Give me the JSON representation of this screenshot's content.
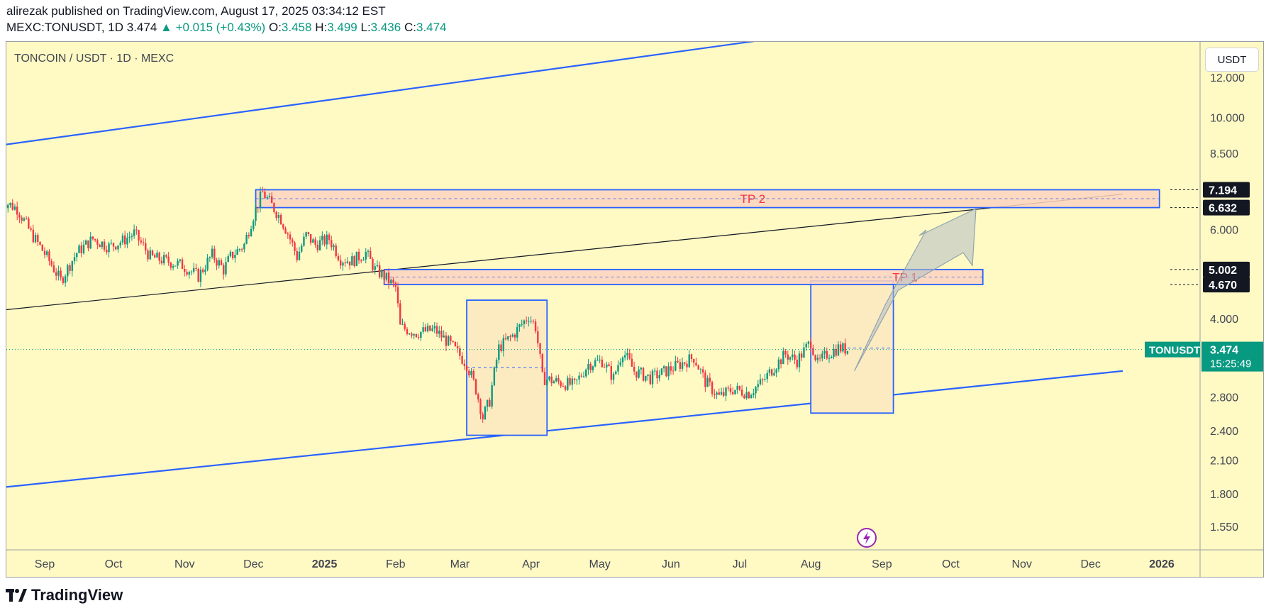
{
  "header": {
    "publisher_line": "alirezak published on TradingView.com, August 17, 2025 03:34:12 EST",
    "symbol": "MEXC:TONUSDT",
    "interval": "1D",
    "last": "3.474",
    "change": "+0.015 (+0.43%)",
    "open_label": "O:",
    "open": "3.458",
    "high_label": "H:",
    "high": "3.499",
    "low_label": "L:",
    "low": "3.436",
    "close_label": "C:",
    "close": "3.474"
  },
  "legend": "TONCOIN / USDT · 1D · MEXC",
  "currency": "USDT",
  "footer": {
    "brand": "TradingView"
  },
  "colors": {
    "background": "#fff9c4",
    "up": "#089981",
    "down": "#f23645",
    "channel": "#2962ff",
    "zone_fill": "#fbd4c0",
    "box_fill": "#fcebc0",
    "tp_text": "#f23645",
    "arrow": "#b0bec5"
  },
  "chart_data": {
    "type": "candlestick",
    "scale": "log",
    "symbol": "TONUSDT",
    "price_label": "3.474",
    "countdown": "15:25:49",
    "y_ticks": [
      "12.000",
      "10.000",
      "8.500",
      "6.000",
      "4.000",
      "2.800",
      "2.400",
      "2.100",
      "1.800",
      "1.550"
    ],
    "x_ticks": [
      "Sep",
      "Oct",
      "Nov",
      "Dec",
      "2025",
      "Feb",
      "Mar",
      "Apr",
      "May",
      "Jun",
      "Jul",
      "Aug",
      "Sep",
      "Oct",
      "Nov",
      "Dec",
      "2026"
    ],
    "key_levels": [
      {
        "label": "7.194",
        "value": 7.194
      },
      {
        "label": "6.632",
        "value": 6.632
      },
      {
        "label": "5.002",
        "value": 5.002
      },
      {
        "label": "4.670",
        "value": 4.67
      }
    ],
    "zones": [
      {
        "name": "TP 2",
        "top": 7.194,
        "bottom": 6.632,
        "start": "2024-12-02",
        "end": "2025-12-31"
      },
      {
        "name": "TP 1",
        "top": 5.002,
        "bottom": 4.67,
        "start": "2025-01-27",
        "end": "2025-10-15"
      }
    ],
    "boxes": [
      {
        "start": "2025-03-04",
        "end": "2025-04-08",
        "top": 4.35,
        "bottom": 2.35,
        "mid": 3.2
      },
      {
        "start": "2025-08-01",
        "end": "2025-09-06",
        "top": 4.75,
        "bottom": 2.6
      }
    ],
    "trendlines": [
      {
        "name": "channel-upper",
        "from": {
          "date": "2024-08-12",
          "price": 8.8
        },
        "to": {
          "date": "2025-12-05",
          "price": 17.6
        }
      },
      {
        "name": "channel-lower",
        "from": {
          "date": "2024-08-12",
          "price": 1.85
        },
        "to": {
          "date": "2025-12-15",
          "price": 3.15
        }
      },
      {
        "name": "diagonal-resistance",
        "from": {
          "date": "2024-08-12",
          "price": 4.15
        },
        "to": {
          "date": "2025-12-15",
          "price": 7.05
        }
      }
    ],
    "arrow": {
      "from": {
        "date": "2025-08-20",
        "price": 3.15
      },
      "via": {
        "date": "2025-09-05",
        "price": 4.7
      },
      "to": {
        "date": "2025-10-12",
        "price": 6.6
      }
    },
    "candles_daily_close": [
      {
        "date": "2024-08-12",
        "price": 6.9
      },
      {
        "date": "2024-08-20",
        "price": 6.6
      },
      {
        "date": "2024-08-26",
        "price": 5.9
      },
      {
        "date": "2024-09-03",
        "price": 5.2
      },
      {
        "date": "2024-09-08",
        "price": 4.75
      },
      {
        "date": "2024-09-15",
        "price": 5.4
      },
      {
        "date": "2024-09-22",
        "price": 5.75
      },
      {
        "date": "2024-09-29",
        "price": 5.55
      },
      {
        "date": "2024-10-05",
        "price": 5.7
      },
      {
        "date": "2024-10-10",
        "price": 5.9
      },
      {
        "date": "2024-10-17",
        "price": 5.3
      },
      {
        "date": "2024-10-24",
        "price": 5.2
      },
      {
        "date": "2024-10-31",
        "price": 5.1
      },
      {
        "date": "2024-11-07",
        "price": 4.85
      },
      {
        "date": "2024-11-13",
        "price": 5.35
      },
      {
        "date": "2024-11-18",
        "price": 5.0
      },
      {
        "date": "2024-11-21",
        "price": 5.3
      },
      {
        "date": "2024-11-27",
        "price": 5.6
      },
      {
        "date": "2024-12-01",
        "price": 6.4
      },
      {
        "date": "2024-12-05",
        "price": 7.1
      },
      {
        "date": "2024-12-09",
        "price": 6.7
      },
      {
        "date": "2024-12-13",
        "price": 6.3
      },
      {
        "date": "2024-12-16",
        "price": 5.9
      },
      {
        "date": "2024-12-20",
        "price": 5.3
      },
      {
        "date": "2024-12-24",
        "price": 5.85
      },
      {
        "date": "2024-12-28",
        "price": 5.6
      },
      {
        "date": "2025-01-03",
        "price": 5.75
      },
      {
        "date": "2025-01-08",
        "price": 5.25
      },
      {
        "date": "2025-01-13",
        "price": 5.2
      },
      {
        "date": "2025-01-19",
        "price": 5.4
      },
      {
        "date": "2025-01-23",
        "price": 5.0
      },
      {
        "date": "2025-01-27",
        "price": 4.85
      },
      {
        "date": "2025-02-01",
        "price": 4.6
      },
      {
        "date": "2025-02-03",
        "price": 3.85
      },
      {
        "date": "2025-02-10",
        "price": 3.75
      },
      {
        "date": "2025-02-18",
        "price": 3.8
      },
      {
        "date": "2025-02-25",
        "price": 3.55
      },
      {
        "date": "2025-03-04",
        "price": 3.25
      },
      {
        "date": "2025-03-08",
        "price": 2.9
      },
      {
        "date": "2025-03-11",
        "price": 2.55
      },
      {
        "date": "2025-03-14",
        "price": 2.75
      },
      {
        "date": "2025-03-18",
        "price": 3.5
      },
      {
        "date": "2025-03-24",
        "price": 3.7
      },
      {
        "date": "2025-03-31",
        "price": 4.05
      },
      {
        "date": "2025-04-03",
        "price": 3.85
      },
      {
        "date": "2025-04-06",
        "price": 3.05
      },
      {
        "date": "2025-04-12",
        "price": 3.0
      },
      {
        "date": "2025-04-20",
        "price": 2.95
      },
      {
        "date": "2025-04-26",
        "price": 3.25
      },
      {
        "date": "2025-05-02",
        "price": 3.3
      },
      {
        "date": "2025-05-07",
        "price": 3.05
      },
      {
        "date": "2025-05-11",
        "price": 3.45
      },
      {
        "date": "2025-05-16",
        "price": 3.15
      },
      {
        "date": "2025-05-23",
        "price": 3.05
      },
      {
        "date": "2025-05-30",
        "price": 3.15
      },
      {
        "date": "2025-06-05",
        "price": 3.25
      },
      {
        "date": "2025-06-11",
        "price": 3.35
      },
      {
        "date": "2025-06-16",
        "price": 3.0
      },
      {
        "date": "2025-06-22",
        "price": 2.8
      },
      {
        "date": "2025-06-28",
        "price": 2.9
      },
      {
        "date": "2025-07-05",
        "price": 2.85
      },
      {
        "date": "2025-07-11",
        "price": 3.0
      },
      {
        "date": "2025-07-17",
        "price": 3.25
      },
      {
        "date": "2025-07-21",
        "price": 3.4
      },
      {
        "date": "2025-07-26",
        "price": 3.3
      },
      {
        "date": "2025-08-01",
        "price": 3.6
      },
      {
        "date": "2025-08-04",
        "price": 3.25
      },
      {
        "date": "2025-08-08",
        "price": 3.4
      },
      {
        "date": "2025-08-13",
        "price": 3.5
      },
      {
        "date": "2025-08-17",
        "price": 3.474
      }
    ]
  }
}
